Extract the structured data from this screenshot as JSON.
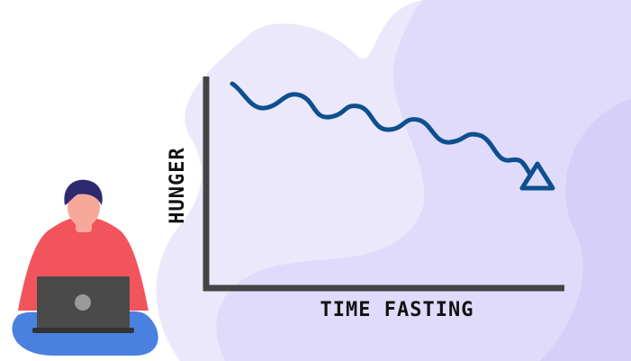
{
  "diagram": {
    "y_axis_label": "HUNGER",
    "x_axis_label": "TIME FASTING"
  }
}
